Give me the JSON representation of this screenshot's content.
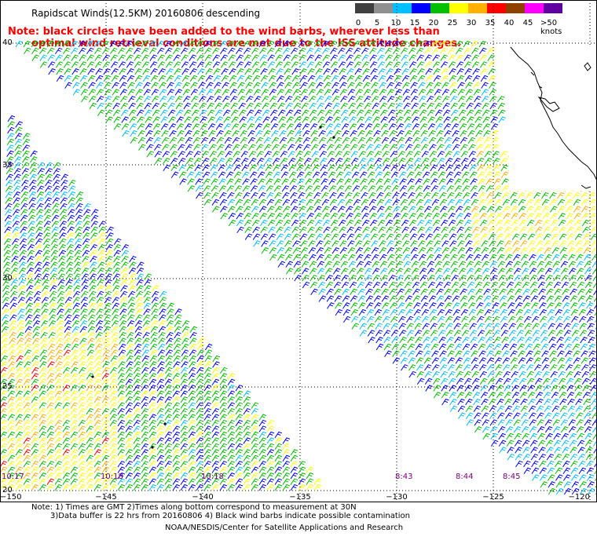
{
  "title": "Rapidscat Winds(12.5KM) 20160806 descending",
  "note": {
    "line1": "Note: black circles have been added to the wind barbs, wherever less than",
    "line2": "optimal wind retrieval conditions are met due to the ISS attitude changes."
  },
  "legend": {
    "labels": [
      "0",
      "5",
      "10",
      "15",
      "20",
      "25",
      "30",
      "35",
      "40",
      "45",
      ">50 knots"
    ],
    "colors": [
      "#404040",
      "#909090",
      "#00bfff",
      "#0000ff",
      "#00c000",
      "#ffff00",
      "#ffb000",
      "#ff0000",
      "#904000",
      "#ff00ff",
      "#6000a0"
    ]
  },
  "lat_labels": [
    "40",
    "35",
    "30",
    "25",
    "20"
  ],
  "lon_labels": [
    "−150",
    "−145",
    "−140",
    "−135",
    "−130",
    "−125",
    "−120"
  ],
  "time_labels": [
    "10:17",
    "10:18",
    "10:18",
    "8:43",
    "8:44",
    "8:45"
  ],
  "footer": {
    "line1": "Note: 1) Times are GMT 2)Times along bottom correspond to measurement at 30N",
    "line2": "3)Data buffer is 22 hrs from 20160806 4) Black wind barbs indicate possible contamination",
    "line3": "NOAA/NESDIS/Center for Satellite Applications and Research"
  }
}
